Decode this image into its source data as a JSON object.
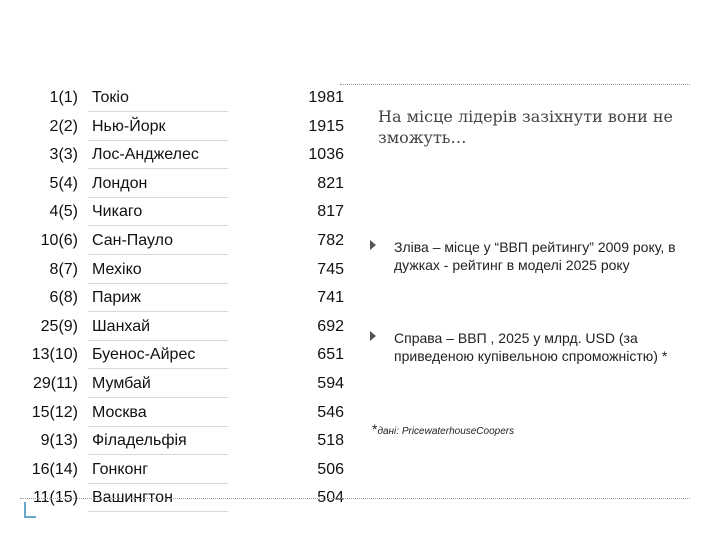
{
  "table": {
    "rows": [
      {
        "rank": "1(1)",
        "city": "Токіо",
        "value": "1981"
      },
      {
        "rank": "2(2)",
        "city": "Нью-Йорк",
        "value": "1915"
      },
      {
        "rank": "3(3)",
        "city": "Лос-Анджелес",
        "value": "1036"
      },
      {
        "rank": "5(4)",
        "city": "Лондон",
        "value": "821"
      },
      {
        "rank": "4(5)",
        "city": "Чикаго",
        "value": "817"
      },
      {
        "rank": "10(6)",
        "city": "Сан-Пауло",
        "value": "782"
      },
      {
        "rank": "8(7)",
        "city": "Мехіко",
        "value": "745"
      },
      {
        "rank": "6(8)",
        "city": "Париж",
        "value": "741"
      },
      {
        "rank": "25(9)",
        "city": "Шанхай",
        "value": "692"
      },
      {
        "rank": "13(10)",
        "city": "Буенос-Айрес",
        "value": "651"
      },
      {
        "rank": "29(11)",
        "city": "Мумбай",
        "value": "594"
      },
      {
        "rank": "15(12)",
        "city": "Москва",
        "value": "546"
      },
      {
        "rank": "9(13)",
        "city": "Філадельфія",
        "value": "518"
      },
      {
        "rank": "16(14)",
        "city": "Гонконг",
        "value": "506"
      },
      {
        "rank": "11(15)",
        "city": "Вашингтон",
        "value": "504"
      }
    ]
  },
  "notes": {
    "headline": "На місце лідерів зазіхнути вони не зможуть…",
    "bullet1": "Зліва – місце у “ВВП рейтингу” 2009 року, в дужках - рейтинг в моделі 2025 року",
    "bullet2": "Справа – ВВП , 2025 у млрд. USD (за приведеною купівельною спроможністю) *",
    "footnote_star": "*",
    "footnote_label": "дані: ",
    "footnote_source": "PricewaterhouseCoopers",
    "bullet_icon": "triangle-bullet-icon"
  }
}
